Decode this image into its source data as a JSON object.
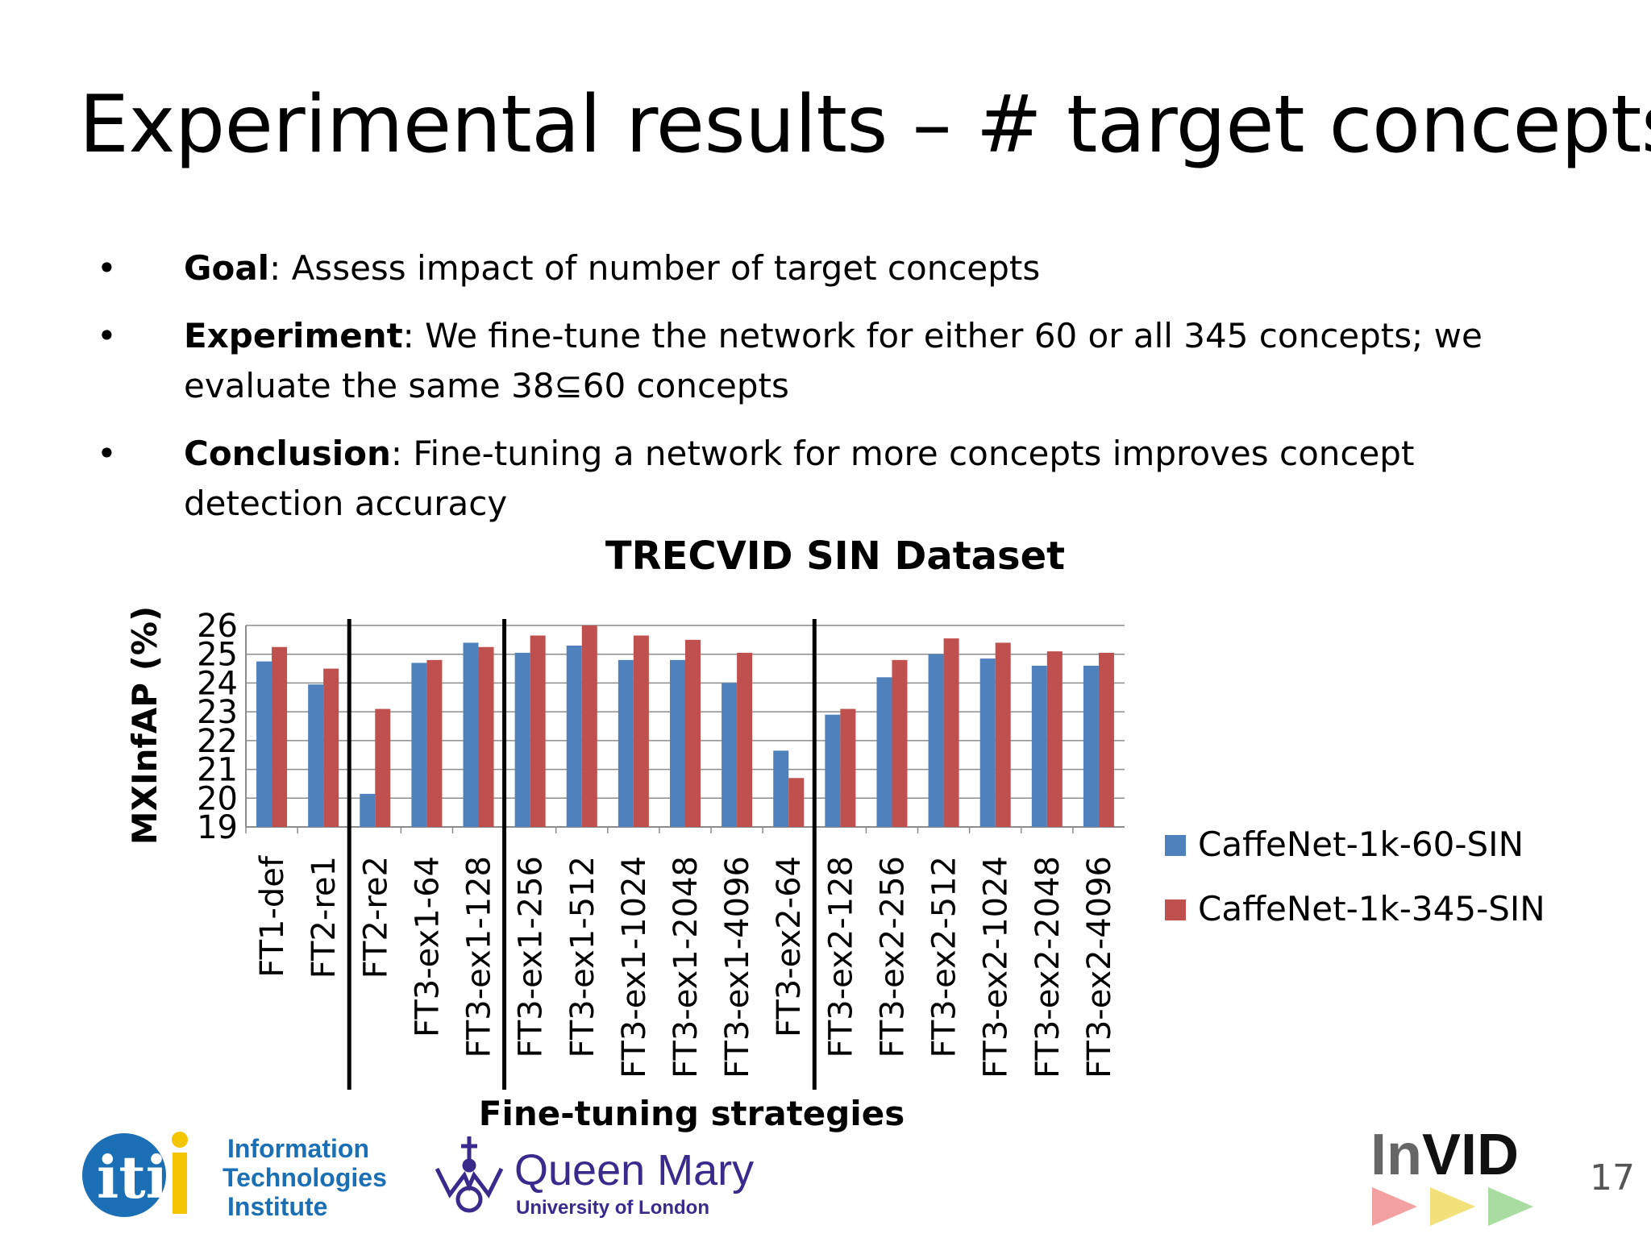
{
  "slide": {
    "title": "Experimental results – # target concepts",
    "bullets": [
      {
        "label": "Goal",
        "text": ": Assess impact of number of target concepts"
      },
      {
        "label": "Experiment",
        "text": ": We fine-tune the network for either 60 or all 345 concepts; we evaluate the same 38⊆60 concepts"
      },
      {
        "label": "Conclusion",
        "text": ": Fine-tuning a network for more concepts improves concept detection accuracy"
      }
    ],
    "page_number": "17"
  },
  "logos": {
    "iti": {
      "mark": "iti",
      "line1": "Information",
      "line2": "Technologies",
      "line3": "Institute"
    },
    "qm": {
      "name": "Queen Mary",
      "sub": "University of London"
    },
    "invid": {
      "text_in": "In",
      "text_vid": "VID"
    }
  },
  "chart_data": {
    "type": "bar",
    "title": "TRECVID SIN Dataset",
    "xlabel": "Fine-tuning strategies",
    "ylabel": "MXInfAP (%)",
    "ylim": [
      19,
      26
    ],
    "yticks": [
      19,
      20,
      21,
      22,
      23,
      24,
      25,
      26
    ],
    "grid": true,
    "legend_position": "right",
    "categories": [
      "FT1-def",
      "FT2-re1",
      "FT2-re2",
      "FT3-ex1-64",
      "FT3-ex1-128",
      "FT3-ex1-256",
      "FT3-ex1-512",
      "FT3-ex1-1024",
      "FT3-ex1-2048",
      "FT3-ex1-4096",
      "FT3-ex2-64",
      "FT3-ex2-128",
      "FT3-ex2-256",
      "FT3-ex2-512",
      "FT3-ex2-1024",
      "FT3-ex2-2048",
      "FT3-ex2-4096"
    ],
    "separators_after_category": [
      "FT2-re1",
      "FT3-ex1-128",
      "FT3-ex2-64"
    ],
    "series": [
      {
        "name": "CaffeNet-1k-60-SIN",
        "color": "#4f81bd",
        "values": [
          24.75,
          23.95,
          20.15,
          24.7,
          25.4,
          25.05,
          25.3,
          24.8,
          24.8,
          24.0,
          21.65,
          22.9,
          24.2,
          25.0,
          24.85,
          24.6,
          24.6
        ]
      },
      {
        "name": "CaffeNet-1k-345-SIN",
        "color": "#c0504d",
        "values": [
          25.25,
          24.5,
          23.1,
          24.8,
          25.25,
          25.65,
          26.0,
          25.65,
          25.5,
          25.05,
          20.7,
          23.1,
          24.8,
          25.55,
          25.4,
          25.1,
          25.05
        ]
      }
    ]
  }
}
